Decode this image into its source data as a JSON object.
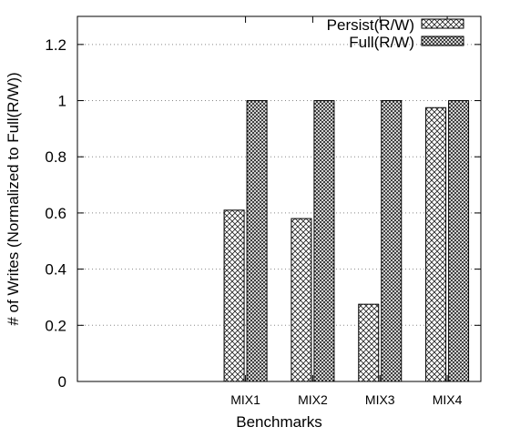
{
  "chart_data": {
    "type": "bar",
    "xlabel": "Benchmarks",
    "ylabel": "# of Writes (Normalized to Full(R/W))",
    "ylim": [
      0,
      1.3
    ],
    "yticks": [
      "0",
      "0.2",
      "0.4",
      "0.6",
      "0.8",
      "1",
      "1.2"
    ],
    "categories": [
      "MIX1",
      "MIX2",
      "MIX3",
      "MIX4"
    ],
    "category_slots": 6,
    "first_category_slot": 2,
    "grid": "y-dotted",
    "legend_position": "top-right",
    "series": [
      {
        "name": "Persist(R/W)",
        "values": [
          0.61,
          0.58,
          0.275,
          0.975
        ],
        "pattern": "crosshatch-fine"
      },
      {
        "name": "Full(R/W)",
        "values": [
          1.0,
          1.0,
          1.0,
          1.0
        ],
        "pattern": "crosshatch-dense"
      }
    ]
  }
}
